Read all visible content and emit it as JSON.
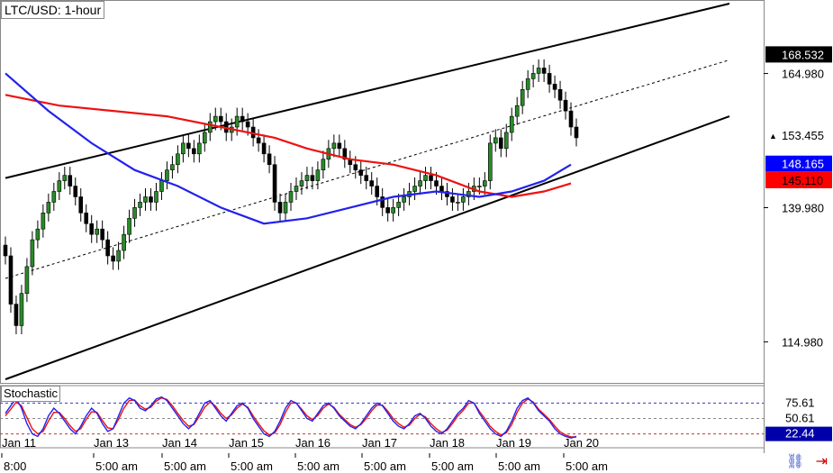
{
  "title": "LTC/USD: 1-hour",
  "chart_data": {
    "type": "candlestick",
    "pair": "LTC/USD",
    "timeframe": "1-hour",
    "ylim": [
      108,
      178
    ],
    "y_ticks": [
      164.98,
      139.98,
      114.98
    ],
    "price_labels": [
      {
        "value": "168.532",
        "bg": "#000000",
        "fg": "#ffffff"
      },
      {
        "value": "153.455",
        "bg": "#ffffff",
        "fg": "#000000",
        "marker": "▲"
      },
      {
        "value": "148.165",
        "bg": "#0000ff",
        "fg": "#ffffff"
      },
      {
        "value": "145.110",
        "bg": "#ff0000",
        "fg": "#000000"
      }
    ],
    "x_dates": [
      "Jan 11",
      "Jan 13",
      "Jan 14",
      "Jan 15",
      "Jan 16",
      "Jan 17",
      "Jan 18",
      "Jan 19",
      "Jan 20"
    ],
    "x_times": [
      "8:00",
      "5:00 am",
      "5:00 am",
      "5:00 am",
      "5:00 am",
      "5:00 am",
      "5:00 am",
      "5:00 am",
      "5:00 am"
    ],
    "candles_close": [
      131,
      122,
      118,
      124,
      129,
      134,
      136,
      139,
      141,
      143,
      145,
      146,
      144,
      142,
      139,
      137,
      135,
      136,
      134,
      131,
      130,
      132,
      135,
      138,
      140,
      141,
      142,
      141,
      143,
      145,
      147,
      148,
      150,
      152,
      151,
      150,
      152,
      154,
      156,
      157,
      156,
      154,
      155,
      157,
      156,
      155,
      153,
      152,
      150,
      148,
      141,
      139,
      141,
      143,
      144,
      145,
      146,
      145,
      147,
      149,
      151,
      152,
      151,
      149,
      148,
      147,
      146,
      145,
      144,
      142,
      140,
      139,
      140,
      141,
      142,
      143,
      144,
      145,
      146,
      145,
      144,
      143,
      142,
      141,
      141,
      142,
      143,
      144,
      144,
      145,
      152,
      153,
      151,
      154,
      157,
      159,
      162,
      164,
      165,
      166,
      165,
      163,
      162,
      160,
      158,
      155,
      153
    ],
    "channel_upper": [
      [
        0,
        145.5
      ],
      [
        106,
        178
      ]
    ],
    "channel_lower": [
      [
        0,
        108
      ],
      [
        106,
        157
      ]
    ],
    "channel_mid": [
      [
        0,
        126.8
      ],
      [
        106,
        167.5
      ]
    ],
    "ma_blue": [
      [
        0,
        165
      ],
      [
        8,
        158
      ],
      [
        16,
        152
      ],
      [
        24,
        147
      ],
      [
        32,
        144
      ],
      [
        40,
        140
      ],
      [
        48,
        137
      ],
      [
        56,
        138
      ],
      [
        64,
        140
      ],
      [
        72,
        142
      ],
      [
        80,
        143
      ],
      [
        88,
        142
      ],
      [
        94,
        143
      ],
      [
        100,
        145
      ],
      [
        105,
        148
      ]
    ],
    "ma_red": [
      [
        0,
        161
      ],
      [
        10,
        159
      ],
      [
        20,
        158
      ],
      [
        30,
        157
      ],
      [
        40,
        155
      ],
      [
        50,
        153
      ],
      [
        56,
        151
      ],
      [
        64,
        149
      ],
      [
        72,
        148
      ],
      [
        80,
        146
      ],
      [
        88,
        143
      ],
      [
        94,
        142
      ],
      [
        100,
        143
      ],
      [
        105,
        144.5
      ]
    ],
    "stochastic": {
      "title": "Stochastic",
      "levels": [
        "75.61",
        "50.61",
        "22.44"
      ],
      "k": [
        60,
        75,
        90,
        70,
        40,
        20,
        15,
        30,
        55,
        70,
        60,
        45,
        30,
        20,
        35,
        55,
        70,
        60,
        40,
        25,
        30,
        55,
        80,
        90,
        85,
        70,
        65,
        75,
        88,
        92,
        85,
        70,
        55,
        40,
        30,
        40,
        60,
        80,
        85,
        70,
        55,
        45,
        60,
        75,
        80,
        70,
        50,
        35,
        20,
        15,
        25,
        45,
        70,
        85,
        80,
        65,
        50,
        45,
        60,
        75,
        80,
        70,
        55,
        45,
        35,
        30,
        40,
        55,
        70,
        80,
        75,
        60,
        45,
        35,
        30,
        40,
        55,
        60,
        50,
        35,
        25,
        20,
        30,
        45,
        60,
        70,
        85,
        80,
        60,
        45,
        30,
        20,
        15,
        25,
        45,
        70,
        85,
        90,
        80,
        65,
        55,
        45,
        30,
        20,
        15,
        12,
        15
      ],
      "d": [
        55,
        68,
        82,
        75,
        52,
        30,
        20,
        25,
        45,
        62,
        62,
        50,
        36,
        25,
        30,
        48,
        63,
        62,
        46,
        32,
        30,
        48,
        70,
        85,
        86,
        75,
        68,
        72,
        84,
        90,
        87,
        75,
        60,
        46,
        35,
        38,
        54,
        72,
        82,
        74,
        60,
        50,
        57,
        70,
        78,
        72,
        55,
        40,
        26,
        18,
        22,
        38,
        62,
        80,
        80,
        68,
        55,
        48,
        56,
        70,
        78,
        72,
        58,
        48,
        38,
        33,
        38,
        50,
        65,
        76,
        76,
        64,
        50,
        40,
        33,
        37,
        50,
        58,
        53,
        40,
        30,
        23,
        27,
        40,
        55,
        66,
        80,
        80,
        64,
        50,
        35,
        25,
        18,
        22,
        38,
        62,
        80,
        88,
        82,
        68,
        58,
        48,
        35,
        24,
        18,
        14,
        14
      ]
    }
  },
  "icons": {
    "chain_icon": "⛓",
    "arrow_icon": "⇥"
  }
}
